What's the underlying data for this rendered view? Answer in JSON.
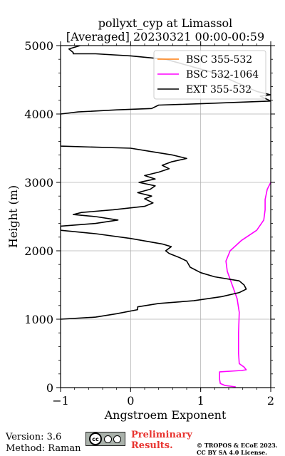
{
  "chart_data": {
    "type": "line",
    "title_line1": "pollyxt_cyp at Limassol",
    "title_line2": "[Averaged] 20230321 00:00-00:59",
    "xlabel": "Angstroem Exponent",
    "ylabel": "Height (m)",
    "xlim": [
      -1,
      2
    ],
    "ylim": [
      0,
      5000
    ],
    "xticks": [
      -1,
      0,
      1,
      2
    ],
    "yticks": [
      0,
      1000,
      2000,
      3000,
      4000,
      5000
    ],
    "grid": true,
    "legend_position": "top-right",
    "series": [
      {
        "name": "BSC 355-532",
        "color": "#ff7f0e",
        "points": []
      },
      {
        "name": "BSC 532-1064",
        "color": "#ff00ff",
        "points": [
          [
            1.5,
            10
          ],
          [
            1.35,
            30
          ],
          [
            1.28,
            60
          ],
          [
            1.27,
            120
          ],
          [
            1.27,
            230
          ],
          [
            1.58,
            250
          ],
          [
            1.65,
            260
          ],
          [
            1.62,
            300
          ],
          [
            1.55,
            350
          ],
          [
            1.54,
            500
          ],
          [
            1.54,
            800
          ],
          [
            1.55,
            1100
          ],
          [
            1.52,
            1300
          ],
          [
            1.45,
            1500
          ],
          [
            1.38,
            1700
          ],
          [
            1.36,
            1850
          ],
          [
            1.42,
            2000
          ],
          [
            1.58,
            2150
          ],
          [
            1.8,
            2300
          ],
          [
            1.9,
            2450
          ],
          [
            1.92,
            2600
          ],
          [
            1.92,
            2750
          ],
          [
            1.95,
            2900
          ],
          [
            2.0,
            3000
          ],
          [
            2.02,
            3050
          ]
        ]
      },
      {
        "name": "EXT 355-532",
        "color": "#000000",
        "points": [
          [
            -1.0,
            1000
          ],
          [
            -0.5,
            1030
          ],
          [
            -0.2,
            1080
          ],
          [
            0.1,
            1140
          ],
          [
            0.1,
            1180
          ],
          [
            0.4,
            1230
          ],
          [
            0.9,
            1270
          ],
          [
            1.3,
            1330
          ],
          [
            1.55,
            1390
          ],
          [
            1.65,
            1440
          ],
          [
            1.62,
            1500
          ],
          [
            1.55,
            1560
          ],
          [
            1.2,
            1620
          ],
          [
            1.0,
            1680
          ],
          [
            0.85,
            1760
          ],
          [
            0.8,
            1850
          ],
          [
            0.7,
            1900
          ],
          [
            0.55,
            1960
          ],
          [
            0.5,
            2000
          ],
          [
            0.58,
            2060
          ],
          [
            0.45,
            2100
          ],
          [
            0.0,
            2180
          ],
          [
            -0.5,
            2250
          ],
          [
            -1.0,
            2300
          ],
          [
            -1.0,
            2360
          ],
          [
            -0.5,
            2400
          ],
          [
            -0.18,
            2450
          ],
          [
            -0.5,
            2500
          ],
          [
            -0.82,
            2530
          ],
          [
            -0.7,
            2560
          ],
          [
            -0.25,
            2600
          ],
          [
            0.2,
            2650
          ],
          [
            0.32,
            2700
          ],
          [
            0.2,
            2760
          ],
          [
            0.3,
            2800
          ],
          [
            0.1,
            2850
          ],
          [
            0.28,
            2900
          ],
          [
            0.35,
            2950
          ],
          [
            0.12,
            3000
          ],
          [
            0.35,
            3050
          ],
          [
            0.2,
            3100
          ],
          [
            0.4,
            3150
          ],
          [
            0.55,
            3200
          ],
          [
            0.45,
            3250
          ],
          [
            0.58,
            3300
          ],
          [
            0.8,
            3350
          ],
          [
            0.6,
            3400
          ],
          [
            0.3,
            3450
          ],
          [
            0.0,
            3500
          ],
          [
            -1.0,
            3530
          ],
          [
            -1.0,
            4000
          ],
          [
            -0.75,
            4030
          ],
          [
            -0.2,
            4060
          ],
          [
            0.3,
            4080
          ],
          [
            0.4,
            4130
          ],
          [
            1.0,
            4150
          ],
          [
            2.0,
            4190
          ],
          [
            1.85,
            4260
          ],
          [
            2.0,
            4280
          ],
          [
            1.8,
            4330
          ],
          [
            1.6,
            4420
          ],
          [
            1.2,
            4600
          ],
          [
            0.5,
            4800
          ],
          [
            0.0,
            4850
          ],
          [
            -0.5,
            4880
          ],
          [
            -0.82,
            4880
          ],
          [
            -0.82,
            4900
          ],
          [
            -0.88,
            4950
          ],
          [
            -0.82,
            4970
          ],
          [
            -0.72,
            5000
          ]
        ]
      }
    ]
  },
  "footer": {
    "version": "Version: 3.6",
    "method": "Method: Raman",
    "prelim_line1": "Preliminary",
    "prelim_line2": "Results.",
    "copyright_line1": "© TROPOS & ECoE 2023.",
    "copyright_line2": "CC BY SA 4.0 License."
  }
}
